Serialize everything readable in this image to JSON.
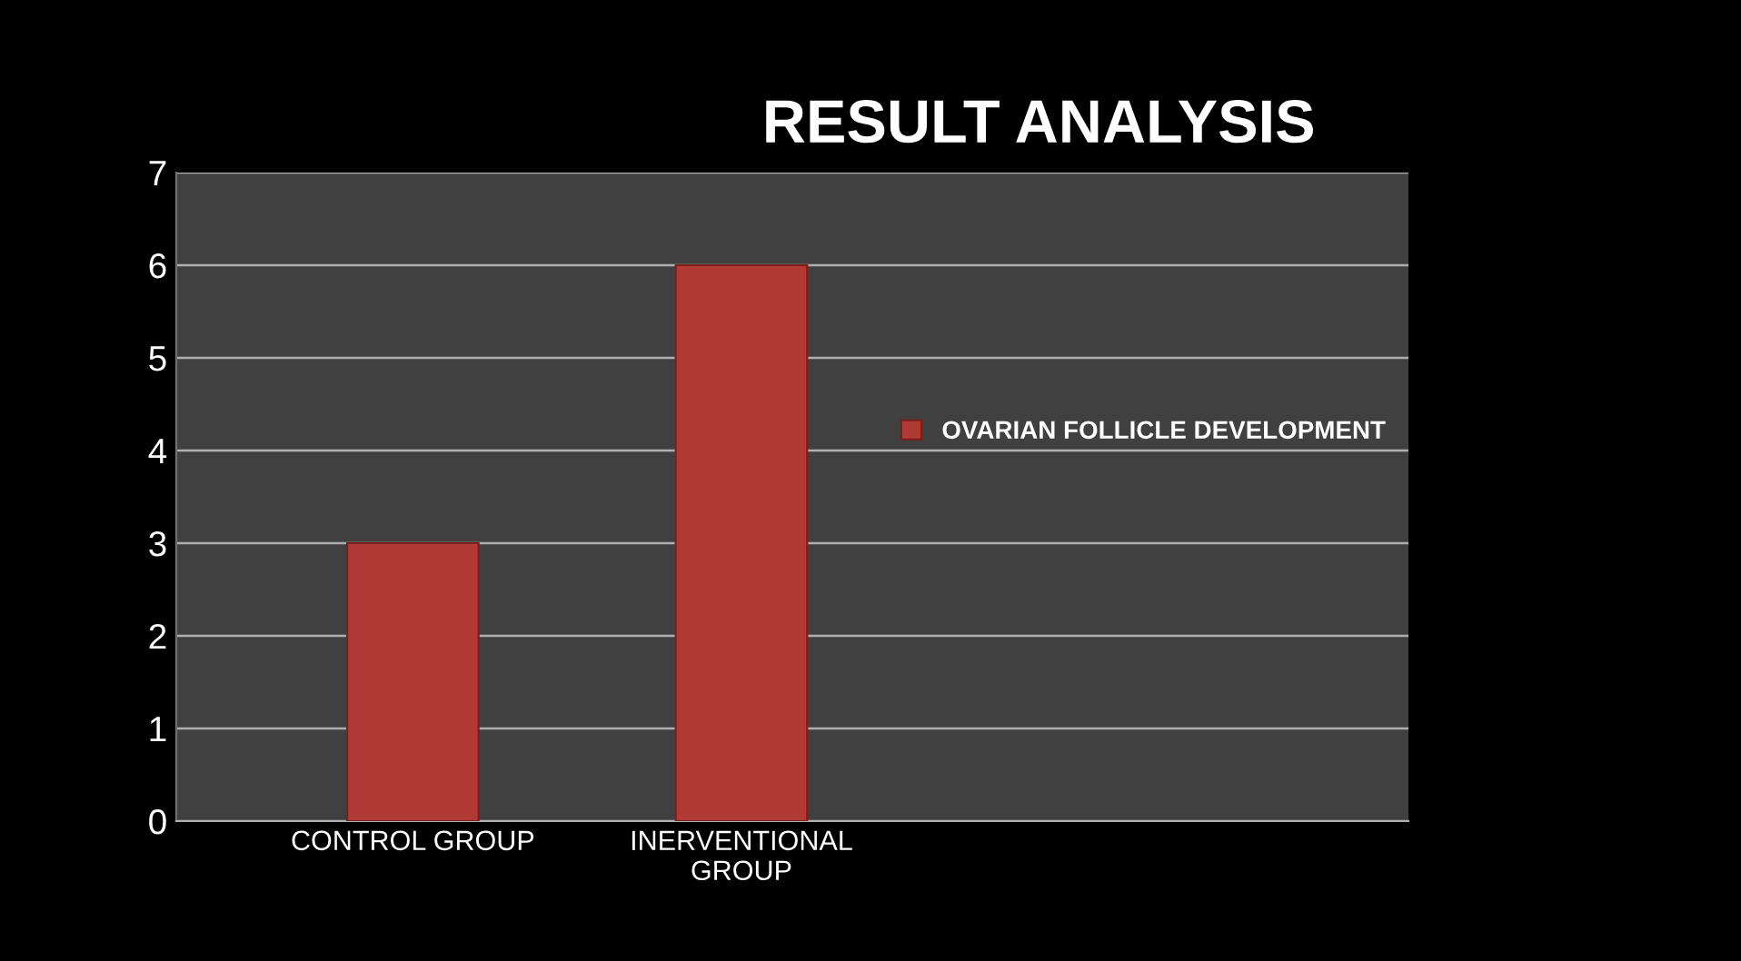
{
  "chart_data": {
    "type": "bar",
    "title": "RESULT ANALYSIS",
    "categories": [
      "CONTROL GROUP",
      "INERVENTIONAL\nGROUP"
    ],
    "series": [
      {
        "name": "OVARIAN FOLLICLE DEVELOPMENT",
        "color": "#b23a36",
        "values": [
          3,
          6
        ]
      }
    ],
    "ylim": [
      0,
      7
    ],
    "yticks": [
      0,
      1,
      2,
      3,
      4,
      5,
      6,
      7
    ],
    "grid": "y",
    "legend": "right"
  }
}
